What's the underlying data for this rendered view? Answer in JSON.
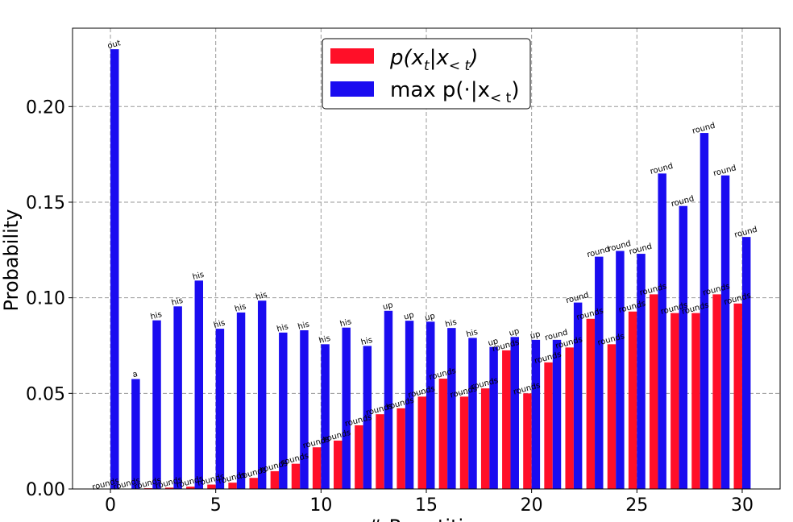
{
  "chart_data": {
    "type": "bar",
    "xlabel": "# Repetition",
    "ylabel": "Probability",
    "xlim": [
      -1.8,
      31.8
    ],
    "ylim": [
      0,
      0.241
    ],
    "x_ticks": [
      0,
      5,
      10,
      15,
      20,
      25,
      30
    ],
    "x_tick_labels": [
      "0",
      "5",
      "10",
      "15",
      "20",
      "25",
      "30"
    ],
    "y_ticks": [
      0.0,
      0.05,
      0.1,
      0.15,
      0.2
    ],
    "y_tick_labels": [
      "0.00",
      "0.05",
      "0.10",
      "0.15",
      "0.20"
    ],
    "grid": true,
    "legend_position": "top-center",
    "x": [
      0,
      1,
      2,
      3,
      4,
      5,
      6,
      7,
      8,
      9,
      10,
      11,
      12,
      13,
      14,
      15,
      16,
      17,
      18,
      19,
      20,
      21,
      22,
      23,
      24,
      25,
      26,
      27,
      28,
      29,
      30
    ],
    "series": [
      {
        "name": "p(x_t | x_<t)",
        "color": "#ff0f28",
        "values": [
          0.0001,
          0.0002,
          0.0004,
          0.0007,
          0.0012,
          0.0023,
          0.0033,
          0.0058,
          0.0093,
          0.0132,
          0.0218,
          0.0253,
          0.0333,
          0.0391,
          0.0422,
          0.0483,
          0.0577,
          0.0483,
          0.0526,
          0.0725,
          0.05,
          0.0662,
          0.074,
          0.089,
          0.0757,
          0.0928,
          0.1018,
          0.092,
          0.092,
          0.1018,
          0.097
        ],
        "labels": [
          "rounds",
          "rounds",
          "rounds",
          "rounds",
          "rounds",
          "rounds",
          "rounds",
          "rounds",
          "rounds",
          "rounds",
          "rounds",
          "rounds",
          "rounds",
          "rounds",
          "rounds",
          "rounds",
          "rounds",
          "rounds",
          "rounds",
          "rounds",
          "rounds",
          "rounds",
          "rounds",
          "rounds",
          "rounds",
          "rounds",
          "rounds",
          "rounds",
          "rounds",
          "rounds",
          "rounds"
        ]
      },
      {
        "name": "max p(·|x_<t)",
        "color": "#1a0cf0",
        "values": [
          0.23,
          0.0575,
          0.0882,
          0.0955,
          0.109,
          0.0838,
          0.0923,
          0.0985,
          0.0818,
          0.083,
          0.0757,
          0.0844,
          0.0748,
          0.0932,
          0.088,
          0.0875,
          0.0842,
          0.079,
          0.0743,
          0.0795,
          0.078,
          0.078,
          0.0975,
          0.1215,
          0.1245,
          0.123,
          0.165,
          0.148,
          0.1862,
          0.164,
          0.1318
        ],
        "labels": [
          "out",
          "a",
          "his",
          "his",
          "his",
          "his",
          "his",
          "his",
          "his",
          "his",
          "his",
          "his",
          "his",
          "up",
          "up",
          "up",
          "his",
          "his",
          "up",
          "up",
          "up",
          "round",
          "round",
          "round",
          "round",
          "round",
          "round",
          "round",
          "round",
          "round",
          "round"
        ]
      }
    ],
    "legend": [
      {
        "text_main": "p(x",
        "sub1": "t",
        "text_mid": "|x",
        "sub2": "< t",
        "text_end": ")"
      },
      {
        "text_main": "max p(·|x",
        "sub1": "< t",
        "text_mid": "",
        "sub2": "",
        "text_end": ")"
      }
    ]
  }
}
